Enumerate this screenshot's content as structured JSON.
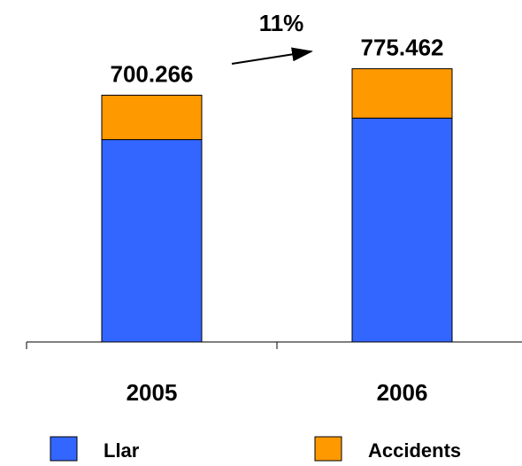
{
  "chart_data": {
    "type": "stacked_bar",
    "categories": [
      "2005",
      "2006"
    ],
    "series": [
      {
        "name": "Llar",
        "color": "#3366ff",
        "values": [
          574,
          635
        ]
      },
      {
        "name": "Accidents",
        "color": "#ff9900",
        "values": [
          126,
          140
        ]
      }
    ],
    "totals": [
      700.266,
      775.462
    ],
    "total_labels": [
      "700.266",
      "775.462"
    ],
    "annotation": "11%",
    "ylim": [
      0,
      970
    ],
    "legend": "bottom"
  }
}
